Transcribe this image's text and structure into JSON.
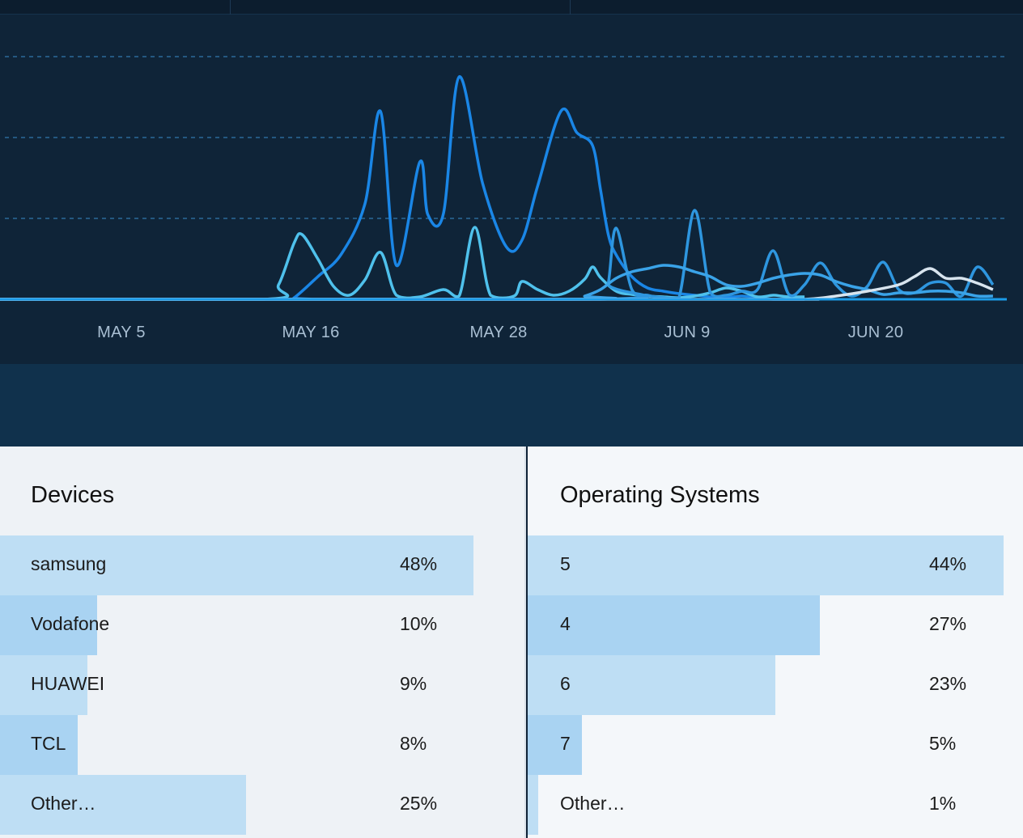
{
  "chart_data": {
    "type": "line",
    "x_tick_labels": [
      "MAY 5",
      "MAY 16",
      "MAY 28",
      "JUN 9",
      "JUN 20"
    ],
    "grid": "horizontal-dashed",
    "series": [
      {
        "color": "#1a86e6",
        "points": [
          [
            0,
            0
          ],
          [
            38,
            0
          ],
          [
            39,
            2
          ],
          [
            42,
            28
          ],
          [
            45,
            56
          ],
          [
            48,
            118
          ],
          [
            50,
            232
          ],
          [
            52,
            42
          ],
          [
            55,
            170
          ],
          [
            56,
            105
          ],
          [
            58,
            106
          ],
          [
            60,
            275
          ],
          [
            63,
            143
          ],
          [
            66,
            65
          ],
          [
            68,
            73
          ],
          [
            70,
            140
          ],
          [
            73,
            233
          ],
          [
            75,
            206
          ],
          [
            77,
            190
          ],
          [
            78,
            136
          ],
          [
            79,
            80
          ],
          [
            80,
            55
          ],
          [
            82,
            28
          ],
          [
            84,
            14
          ],
          [
            86,
            10
          ],
          [
            88,
            7
          ],
          [
            90,
            5
          ],
          [
            92,
            3
          ],
          [
            94,
            2
          ],
          [
            96,
            4
          ],
          [
            98,
            2
          ],
          [
            100,
            0
          ],
          [
            104,
            0
          ]
        ]
      },
      {
        "color": "#4fc1ec",
        "points": [
          [
            0,
            0
          ],
          [
            35,
            0
          ],
          [
            37,
            18
          ],
          [
            39,
            70
          ],
          [
            40,
            80
          ],
          [
            42,
            50
          ],
          [
            44,
            16
          ],
          [
            46,
            5
          ],
          [
            48,
            24
          ],
          [
            50,
            58
          ],
          [
            52,
            5
          ],
          [
            55,
            3
          ],
          [
            58,
            12
          ],
          [
            60,
            4
          ],
          [
            62,
            89
          ],
          [
            64,
            5
          ],
          [
            67,
            4
          ],
          [
            68,
            22
          ],
          [
            70,
            12
          ],
          [
            72,
            5
          ],
          [
            74,
            10
          ],
          [
            76,
            25
          ],
          [
            77,
            40
          ],
          [
            78,
            27
          ],
          [
            80,
            10
          ],
          [
            82,
            6
          ],
          [
            84,
            4
          ],
          [
            86,
            3
          ],
          [
            88,
            2
          ],
          [
            90,
            4
          ],
          [
            92,
            8
          ],
          [
            94,
            14
          ],
          [
            96,
            10
          ],
          [
            98,
            3
          ],
          [
            100,
            5
          ],
          [
            101,
            4
          ],
          [
            102,
            3
          ],
          [
            104,
            3
          ]
        ]
      },
      {
        "color": "#2e96df",
        "points": [
          [
            0,
            0
          ],
          [
            78,
            0
          ],
          [
            79,
            20
          ],
          [
            80,
            88
          ],
          [
            82,
            12
          ],
          [
            84,
            5
          ],
          [
            86,
            2
          ],
          [
            88,
            2
          ],
          [
            90,
            110
          ],
          [
            92,
            8
          ],
          [
            94,
            5
          ],
          [
            96,
            10
          ],
          [
            98,
            12
          ],
          [
            100,
            60
          ],
          [
            102,
            6
          ],
          [
            104,
            18
          ],
          [
            106,
            45
          ],
          [
            108,
            18
          ],
          [
            110,
            4
          ],
          [
            112,
            16
          ],
          [
            114,
            46
          ],
          [
            116,
            12
          ],
          [
            118,
            8
          ],
          [
            120,
            20
          ],
          [
            122,
            20
          ],
          [
            124,
            4
          ],
          [
            126,
            40
          ],
          [
            128,
            18
          ]
        ]
      },
      {
        "color": "#3aa3e8",
        "points": [
          [
            0,
            0
          ],
          [
            74,
            0
          ],
          [
            76,
            4
          ],
          [
            78,
            12
          ],
          [
            80,
            26
          ],
          [
            82,
            34
          ],
          [
            84,
            38
          ],
          [
            86,
            42
          ],
          [
            88,
            40
          ],
          [
            90,
            34
          ],
          [
            92,
            28
          ],
          [
            94,
            18
          ],
          [
            96,
            16
          ],
          [
            98,
            20
          ],
          [
            100,
            26
          ],
          [
            102,
            30
          ],
          [
            104,
            32
          ],
          [
            106,
            30
          ],
          [
            108,
            22
          ],
          [
            110,
            16
          ],
          [
            112,
            12
          ],
          [
            114,
            6
          ],
          [
            116,
            8
          ],
          [
            118,
            8
          ],
          [
            120,
            10
          ],
          [
            122,
            10
          ],
          [
            124,
            8
          ],
          [
            126,
            4
          ],
          [
            128,
            4
          ]
        ]
      },
      {
        "color": "#d8e4ee",
        "points": [
          [
            0,
            0
          ],
          [
            96,
            0
          ],
          [
            104,
            0
          ],
          [
            108,
            4
          ],
          [
            112,
            10
          ],
          [
            116,
            18
          ],
          [
            118,
            28
          ],
          [
            120,
            38
          ],
          [
            122,
            26
          ],
          [
            124,
            26
          ],
          [
            126,
            20
          ],
          [
            128,
            12
          ]
        ]
      }
    ]
  },
  "devices": {
    "title": "Devices",
    "items": [
      {
        "label": "samsung",
        "pct": "48%",
        "fill": 0.9,
        "color": "#bedef4"
      },
      {
        "label": "Vodafone",
        "pct": "10%",
        "fill": 0.185,
        "color": "#a9d3f2"
      },
      {
        "label": "HUAWEI",
        "pct": "9%",
        "fill": 0.166,
        "color": "#bedef4"
      },
      {
        "label": "TCL",
        "pct": "8%",
        "fill": 0.148,
        "color": "#a9d3f2"
      },
      {
        "label": "Other…",
        "pct": "25%",
        "fill": 0.468,
        "color": "#bedef4"
      }
    ]
  },
  "os": {
    "title": "Operating Systems",
    "items": [
      {
        "label": "5",
        "pct": "44%",
        "fill": 0.96,
        "color": "#bedef4"
      },
      {
        "label": "4",
        "pct": "27%",
        "fill": 0.59,
        "color": "#a9d3f2"
      },
      {
        "label": "6",
        "pct": "23%",
        "fill": 0.5,
        "color": "#bedef4"
      },
      {
        "label": "7",
        "pct": "5%",
        "fill": 0.11,
        "color": "#a9d3f2"
      },
      {
        "label": "Other…",
        "pct": "1%",
        "fill": 0.022,
        "color": "#bedef4"
      }
    ]
  }
}
